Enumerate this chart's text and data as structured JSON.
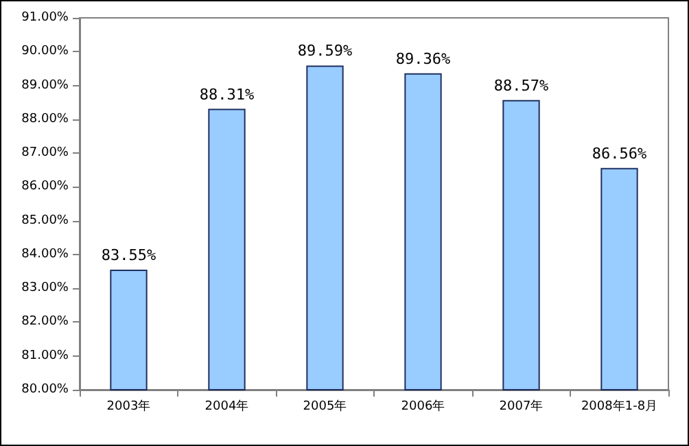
{
  "chart_data": {
    "type": "bar",
    "categories": [
      "2003年",
      "2004年",
      "2005年",
      "2006年",
      "2007年",
      "2008年1-8月"
    ],
    "values": [
      83.55,
      88.31,
      89.59,
      89.36,
      88.57,
      86.56
    ],
    "value_labels": [
      "83.55%",
      "88.31%",
      "89.59%",
      "89.36%",
      "88.57%",
      "86.56%"
    ],
    "color": "#99ccff",
    "ylim": [
      80,
      91
    ],
    "yticks": [
      {
        "value": 80,
        "label": "80.00%"
      },
      {
        "value": 81,
        "label": "81.00%"
      },
      {
        "value": 82,
        "label": "82.00%"
      },
      {
        "value": 83,
        "label": "83.00%"
      },
      {
        "value": 84,
        "label": "84.00%"
      },
      {
        "value": 85,
        "label": "85.00%"
      },
      {
        "value": 86,
        "label": "86.00%"
      },
      {
        "value": 87,
        "label": "87.00%"
      },
      {
        "value": 88,
        "label": "88.00%"
      },
      {
        "value": 89,
        "label": "89.00%"
      },
      {
        "value": 90,
        "label": "90.00%"
      },
      {
        "value": 91,
        "label": "91.00%"
      }
    ],
    "grid": false
  }
}
